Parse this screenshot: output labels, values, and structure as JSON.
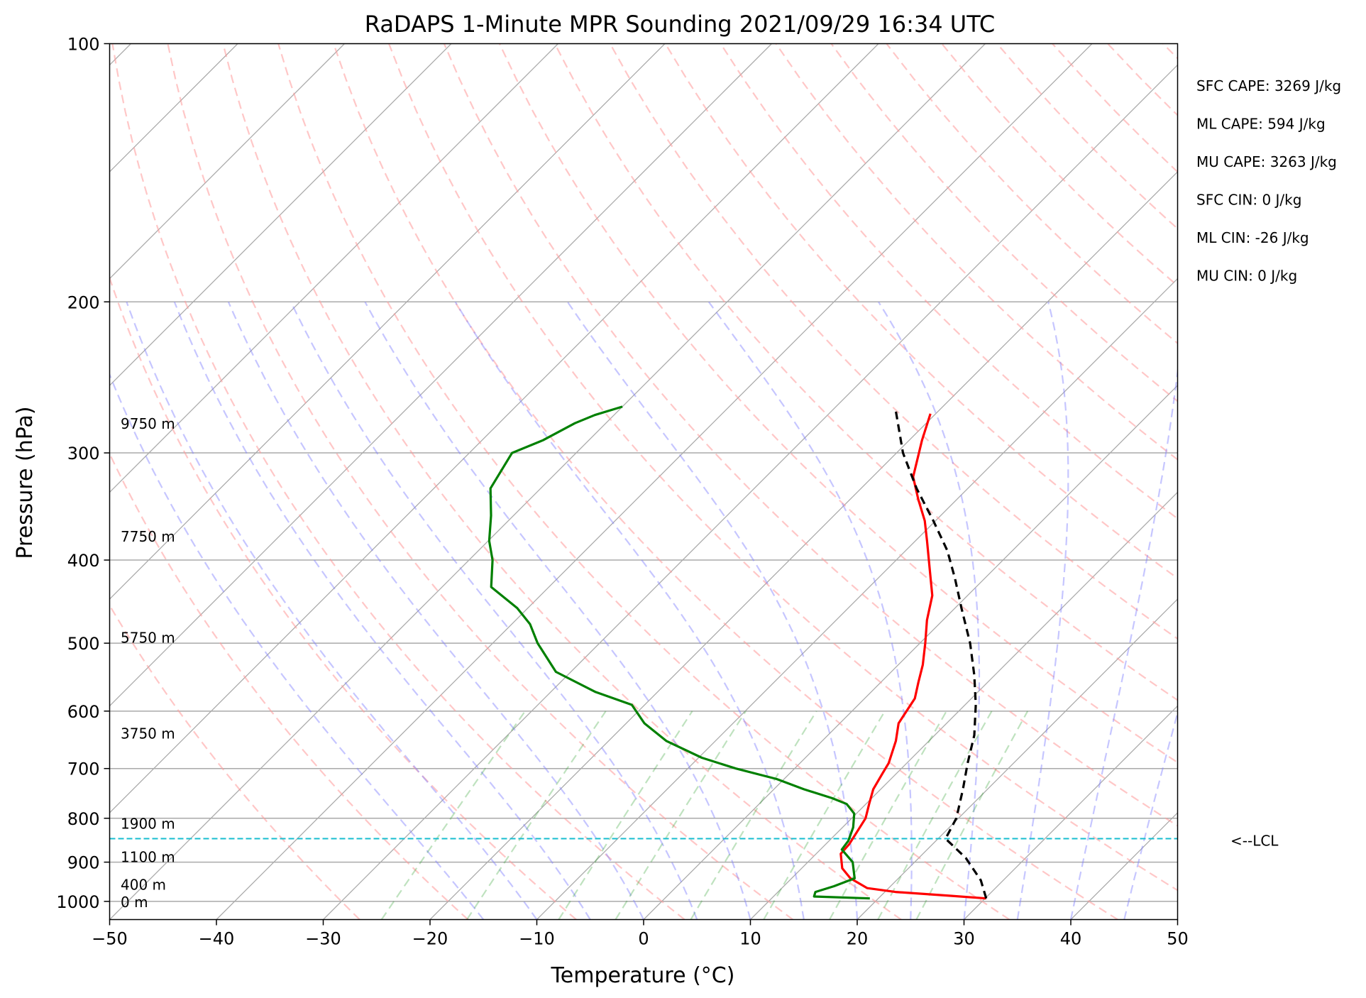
{
  "chart_data": {
    "type": "line",
    "subtype": "skew-t",
    "title": "RaDAPS 1-Minute MPR Sounding 2021/09/29 16:34 UTC",
    "xlabel": "Temperature (°C)",
    "ylabel": "Pressure (hPa)",
    "xlim": [
      -50,
      50
    ],
    "ylim": [
      1050,
      100
    ],
    "y_scale": "log",
    "x_ticks": [
      "−50",
      "−40",
      "−30",
      "−20",
      "−10",
      "0",
      "10",
      "20",
      "30",
      "40",
      "50"
    ],
    "y_ticks": [
      "100",
      "200",
      "300",
      "400",
      "500",
      "600",
      "700",
      "800",
      "900",
      "1000"
    ],
    "grid": true,
    "stats": [
      "SFC CAPE: 3269 J/kg",
      "ML CAPE: 594 J/kg",
      "MU CAPE: 3263 J/kg",
      "SFC CIN: 0 J/kg",
      "ML CIN: -26 J/kg",
      "MU CIN: 0 J/kg"
    ],
    "lcl_label": "<--LCL",
    "lcl_pressure": 845,
    "height_labels": [
      {
        "text": "9750 m",
        "p": 277
      },
      {
        "text": "7750 m",
        "p": 375
      },
      {
        "text": "5750 m",
        "p": 492
      },
      {
        "text": "3750 m",
        "p": 636
      },
      {
        "text": "1900 m",
        "p": 810
      },
      {
        "text": "1100 m",
        "p": 886
      },
      {
        "text": "400 m",
        "p": 955
      },
      {
        "text": "0 m",
        "p": 1000
      }
    ],
    "series": [
      {
        "id": "temperature",
        "color": "#ff0000",
        "points": [
          [
            992,
            30.1
          ],
          [
            985,
            26.5
          ],
          [
            975,
            21
          ],
          [
            965,
            18
          ],
          [
            940,
            15.5
          ],
          [
            915,
            13.8
          ],
          [
            880,
            12.3
          ],
          [
            858,
            12.2
          ],
          [
            800,
            11.3
          ],
          [
            770,
            10.3
          ],
          [
            740,
            9.3
          ],
          [
            710,
            8.7
          ],
          [
            690,
            8.3
          ],
          [
            650,
            6.9
          ],
          [
            620,
            5.5
          ],
          [
            580,
            4.7
          ],
          [
            555,
            3.5
          ],
          [
            530,
            2.3
          ],
          [
            500,
            0.5
          ],
          [
            470,
            -1.5
          ],
          [
            440,
            -3.3
          ],
          [
            410,
            -6
          ],
          [
            380,
            -8.9
          ],
          [
            360,
            -11
          ],
          [
            340,
            -13.6
          ],
          [
            320,
            -16.2
          ],
          [
            290,
            -18.8
          ],
          [
            270,
            -20.5
          ]
        ]
      },
      {
        "id": "dewpoint",
        "color": "#008000",
        "points": [
          [
            992,
            19.2
          ],
          [
            987,
            13.8
          ],
          [
            975,
            13.5
          ],
          [
            960,
            14.7
          ],
          [
            940,
            15.9
          ],
          [
            900,
            14.2
          ],
          [
            870,
            12
          ],
          [
            850,
            11.8
          ],
          [
            820,
            11
          ],
          [
            790,
            9.8
          ],
          [
            770,
            8.2
          ],
          [
            758,
            6.3
          ],
          [
            740,
            2.8
          ],
          [
            720,
            -0.7
          ],
          [
            700,
            -5.5
          ],
          [
            680,
            -9.7
          ],
          [
            650,
            -14.6
          ],
          [
            620,
            -18.3
          ],
          [
            590,
            -21.2
          ],
          [
            570,
            -25.8
          ],
          [
            540,
            -31.4
          ],
          [
            500,
            -35.8
          ],
          [
            475,
            -38.3
          ],
          [
            455,
            -41
          ],
          [
            430,
            -45.4
          ],
          [
            400,
            -47.8
          ],
          [
            380,
            -49.9
          ],
          [
            355,
            -52.1
          ],
          [
            330,
            -54.7
          ],
          [
            300,
            -56
          ],
          [
            290,
            -54.3
          ],
          [
            277,
            -52.9
          ],
          [
            271,
            -51.8
          ],
          [
            265,
            -50
          ]
        ]
      },
      {
        "id": "parcel",
        "color": "#000000",
        "dashed": true,
        "points": [
          [
            992,
            30.1
          ],
          [
            945,
            27.9
          ],
          [
            890,
            24.4
          ],
          [
            845,
            20.7
          ],
          [
            800,
            19.8
          ],
          [
            740,
            17.7
          ],
          [
            690,
            15.7
          ],
          [
            640,
            13.7
          ],
          [
            590,
            11
          ],
          [
            545,
            8.1
          ],
          [
            500,
            4.7
          ],
          [
            455,
            0.6
          ],
          [
            420,
            -2.8
          ],
          [
            390,
            -6.1
          ],
          [
            360,
            -10.2
          ],
          [
            330,
            -14.8
          ],
          [
            300,
            -19.4
          ],
          [
            268,
            -24
          ]
        ]
      }
    ]
  }
}
